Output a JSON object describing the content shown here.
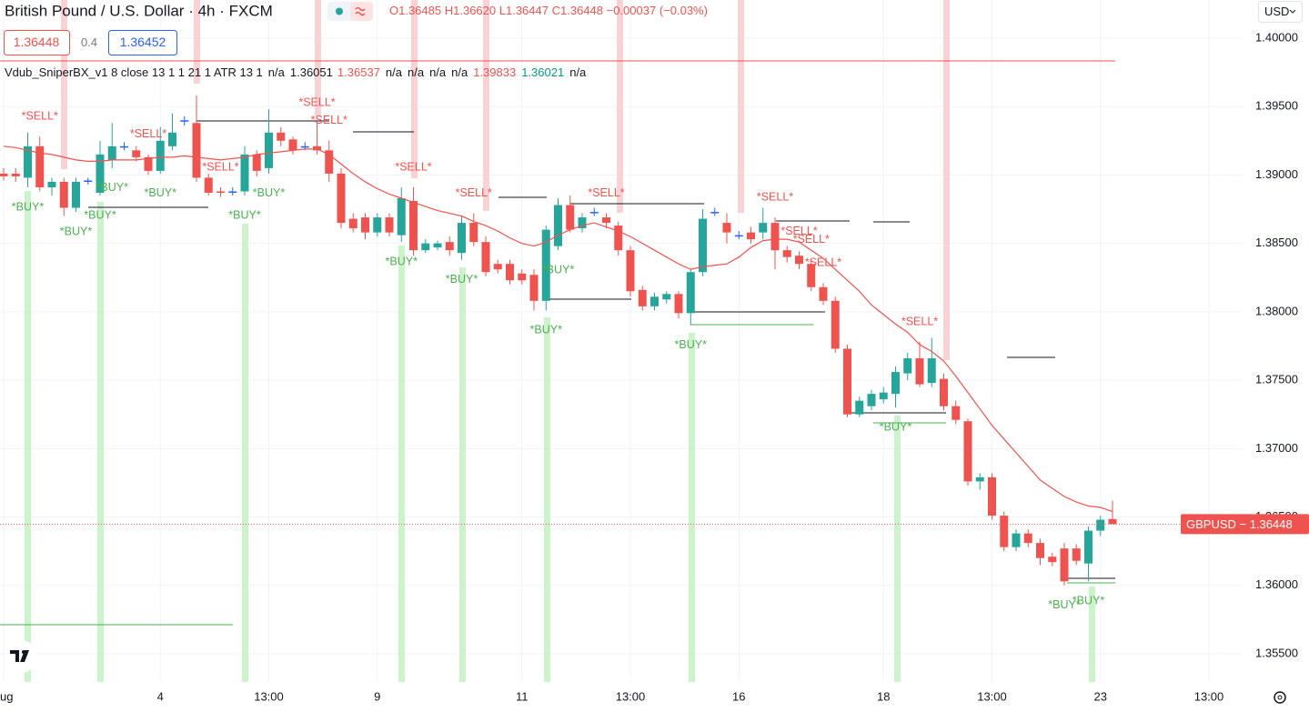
{
  "header": {
    "title": "British Pound / U.S. Dollar · 4h · FXCM",
    "ohlc": [
      "O1.36485",
      "H1.36620",
      "L1.36447",
      "C1.36448",
      "−0.00037 (−0.03%)"
    ],
    "bid": "1.36448",
    "spread": "0.4",
    "ask": "1.36452",
    "currency": "USD",
    "indicator_name": "Vdub_SniperBX_v1 8 close 13 1 1 21 1 ATR 13 1",
    "indicator_values": [
      {
        "text": "n/a",
        "color": "#131722"
      },
      {
        "text": "1.36051",
        "color": "#131722"
      },
      {
        "text": "1.36537",
        "color": "#ef5350"
      },
      {
        "text": "n/a",
        "color": "#131722"
      },
      {
        "text": "n/a",
        "color": "#131722"
      },
      {
        "text": "n/a",
        "color": "#131722"
      },
      {
        "text": "n/a",
        "color": "#131722"
      },
      {
        "text": "1.39833",
        "color": "#ef5350"
      },
      {
        "text": "1.36021",
        "color": "#089981"
      },
      {
        "text": "n/a",
        "color": "#131722"
      }
    ]
  },
  "chart_data": {
    "type": "candlestick",
    "categories": [
      "ug",
      null,
      null,
      null,
      null,
      null,
      null,
      null,
      null,
      null,
      null,
      null,
      null,
      "4",
      null,
      null,
      null,
      null,
      null,
      null,
      null,
      null,
      "13:00",
      null,
      null,
      null,
      null,
      null,
      null,
      null,
      null,
      "9",
      null,
      null,
      null,
      null,
      null,
      null,
      null,
      null,
      null,
      null,
      null,
      "11",
      null,
      null,
      null,
      null,
      null,
      null,
      null,
      null,
      "13:00",
      null,
      null,
      null,
      null,
      null,
      null,
      null,
      null,
      "16",
      null,
      null,
      null,
      null,
      null,
      null,
      null,
      null,
      null,
      null,
      null,
      "18",
      null,
      null,
      null,
      null,
      null,
      null,
      null,
      null,
      "13:00",
      null,
      null,
      null,
      null,
      null,
      null,
      null,
      null,
      "23",
      null,
      null,
      null,
      null,
      null,
      null,
      null,
      null,
      "13:00"
    ],
    "open": [
      1.3901,
      1.3901,
      1.3898,
      1.3921,
      1.3891,
      1.3895,
      1.3876,
      1.3896,
      1.3887,
      1.3911,
      1.3921,
      1.3918,
      1.3913,
      1.3903,
      1.3921,
      1.394,
      1.3938,
      1.3898,
      1.3888,
      1.3888,
      1.3888,
      1.3915,
      1.3905,
      1.3931,
      1.3926,
      1.3921,
      1.3921,
      1.3918,
      1.3901,
      1.3868,
      1.3869,
      1.3858,
      1.3869,
      1.3856,
      1.3881,
      1.3845,
      1.3847,
      1.3851,
      1.3843,
      1.3865,
      1.3851,
      1.3835,
      1.3835,
      1.3828,
      1.3827,
      1.3808,
      1.3848,
      1.3878,
      1.3861,
      1.3873,
      1.3869,
      1.3863,
      1.3845,
      1.3816,
      1.3804,
      1.3809,
      1.3813,
      1.3799,
      1.3829,
      1.3873,
      1.3865,
      1.3856,
      1.3858,
      1.3858,
      1.3865,
      1.3845,
      1.3841,
      1.3835,
      1.3818,
      1.3808,
      1.3773,
      1.3725,
      1.3731,
      1.3736,
      1.374,
      1.3755,
      1.3766,
      1.3748,
      1.3751,
      1.3731,
      1.372,
      1.3676,
      1.3679,
      1.3651,
      1.3628,
      1.3638,
      1.3631,
      1.3621,
      1.3627,
      1.3627,
      1.3616,
      1.364,
      1.36485,
      null,
      null,
      null,
      null,
      null,
      null,
      null,
      null
    ],
    "high": [
      1.3905,
      1.3905,
      1.3931,
      1.3928,
      1.3898,
      1.3898,
      1.3898,
      1.3898,
      1.3925,
      1.3938,
      1.3924,
      1.3921,
      1.3915,
      1.3935,
      1.3945,
      1.3943,
      1.3958,
      1.3901,
      1.3891,
      1.3891,
      1.3921,
      1.3918,
      1.3948,
      1.3935,
      1.3928,
      1.3924,
      1.3938,
      1.3925,
      1.3905,
      1.3872,
      1.3872,
      1.3872,
      1.3872,
      1.3891,
      1.3891,
      1.3853,
      1.3852,
      1.3855,
      1.387,
      1.3872,
      1.3855,
      1.3838,
      1.3838,
      1.3831,
      1.3831,
      1.3863,
      1.3883,
      1.3885,
      1.3872,
      1.3876,
      1.3872,
      1.3866,
      1.3848,
      1.3819,
      1.3814,
      1.3815,
      1.3815,
      1.3831,
      1.3875,
      1.3876,
      1.3872,
      1.3859,
      1.3862,
      1.3876,
      1.3869,
      1.3848,
      1.3844,
      1.3838,
      1.3821,
      1.3811,
      1.3776,
      1.3738,
      1.3743,
      1.3745,
      1.376,
      1.377,
      1.3778,
      1.3781,
      1.3755,
      1.3735,
      1.3722,
      1.3682,
      1.3682,
      1.3654,
      1.3641,
      1.3641,
      1.3634,
      1.3624,
      1.3631,
      1.363,
      1.3643,
      1.3651,
      1.3662,
      null,
      null,
      null,
      null,
      null,
      null,
      null,
      null
    ],
    "low": [
      1.3896,
      1.3895,
      1.3891,
      1.3888,
      1.3885,
      1.387,
      1.3873,
      1.3893,
      1.3885,
      1.3905,
      1.3918,
      1.391,
      1.39,
      1.3901,
      1.3918,
      1.3936,
      1.3895,
      1.3885,
      1.3884,
      1.3885,
      1.3885,
      1.3899,
      1.3901,
      1.3921,
      1.3915,
      1.3918,
      1.3915,
      1.3895,
      1.3861,
      1.3858,
      1.3853,
      1.3855,
      1.3855,
      1.3851,
      1.3841,
      1.3843,
      1.3845,
      1.3841,
      1.3838,
      1.3848,
      1.3826,
      1.3828,
      1.382,
      1.382,
      1.3801,
      1.3801,
      1.3845,
      1.3858,
      1.3858,
      1.387,
      1.3861,
      1.3841,
      1.3811,
      1.3801,
      1.3801,
      1.3806,
      1.3795,
      1.379,
      1.3826,
      1.387,
      1.385,
      1.3853,
      1.385,
      1.3853,
      1.3831,
      1.3836,
      1.3831,
      1.3815,
      1.3805,
      1.377,
      1.3723,
      1.3723,
      1.3728,
      1.3733,
      1.373,
      1.375,
      1.3745,
      1.3745,
      1.3728,
      1.3718,
      1.3673,
      1.367,
      1.3648,
      1.3625,
      1.3625,
      1.3628,
      1.3615,
      1.3614,
      1.36,
      1.3615,
      1.3603,
      1.3636,
      1.36447,
      null,
      null,
      null,
      null,
      null,
      null,
      null,
      null
    ],
    "close": [
      1.3899,
      1.3899,
      1.3921,
      1.3891,
      1.3895,
      1.3876,
      1.3895,
      1.3896,
      1.3915,
      1.3921,
      1.3921,
      1.3913,
      1.3903,
      1.3925,
      1.3931,
      1.394,
      1.3898,
      1.3887,
      1.3887,
      1.3888,
      1.3915,
      1.3903,
      1.3931,
      1.3925,
      1.3918,
      1.3921,
      1.3918,
      1.3901,
      1.3865,
      1.3861,
      1.3858,
      1.3869,
      1.3858,
      1.3883,
      1.3845,
      1.385,
      1.385,
      1.3845,
      1.3865,
      1.3851,
      1.3829,
      1.3831,
      1.3823,
      1.3823,
      1.3808,
      1.386,
      1.3878,
      1.386,
      1.3869,
      1.3873,
      1.3865,
      1.3845,
      1.3815,
      1.3804,
      1.3811,
      1.3813,
      1.3799,
      1.3829,
      1.3868,
      1.3873,
      1.3858,
      1.3856,
      1.3853,
      1.3865,
      1.3845,
      1.384,
      1.3835,
      1.3818,
      1.3808,
      1.3773,
      1.3725,
      1.3735,
      1.374,
      1.3741,
      1.3756,
      1.3766,
      1.3747,
      1.3766,
      1.3731,
      1.3721,
      1.3676,
      1.3679,
      1.3651,
      1.3628,
      1.3638,
      1.3631,
      1.362,
      1.3617,
      1.3603,
      1.3618,
      1.364,
      1.3648,
      1.36448,
      null,
      null,
      null,
      null,
      null,
      null,
      null,
      null
    ],
    "ma": [
      1.3921,
      1.392,
      1.3918,
      1.3916,
      1.3915,
      1.3913,
      1.3911,
      1.391,
      1.391,
      1.3911,
      1.3911,
      1.3911,
      1.3912,
      1.3913,
      1.3913,
      1.3914,
      1.3913,
      1.3912,
      1.3911,
      1.3912,
      1.3913,
      1.3915,
      1.3916,
      1.3917,
      1.3918,
      1.3919,
      1.3919,
      1.3915,
      1.3908,
      1.3901,
      1.3895,
      1.389,
      1.3886,
      1.3883,
      1.388,
      1.3877,
      1.3874,
      1.3872,
      1.387,
      1.3866,
      1.3863,
      1.3859,
      1.3854,
      1.385,
      1.3848,
      1.3851,
      1.3856,
      1.386,
      1.3863,
      1.3865,
      1.3862,
      1.3859,
      1.3855,
      1.385,
      1.3845,
      1.384,
      1.3835,
      1.3831,
      1.3833,
      1.3834,
      1.3835,
      1.384,
      1.3847,
      1.3852,
      1.3853,
      1.3853,
      1.3851,
      1.3845,
      1.3839,
      1.3831,
      1.3823,
      1.3815,
      1.3805,
      1.3798,
      1.3791,
      1.3785,
      1.3776,
      1.3771,
      1.3764,
      1.3753,
      1.3741,
      1.3729,
      1.3717,
      1.3707,
      1.3697,
      1.3687,
      1.3677,
      1.3671,
      1.3665,
      1.3661,
      1.3658,
      1.3657,
      1.3654,
      null,
      null,
      null,
      null,
      null,
      null,
      null,
      null
    ],
    "ma_color": "#ef5350",
    "signals": [
      null,
      null,
      "*BUY*",
      "*SELL*",
      null,
      null,
      "*BUY*",
      null,
      "*BUY*",
      "*BUY*",
      null,
      null,
      "*SELL*",
      "*BUY*",
      null,
      null,
      null,
      null,
      "*SELL*",
      null,
      "*BUY*",
      null,
      "*BUY*",
      null,
      null,
      null,
      "*SELL*",
      "*SELL*",
      null,
      null,
      null,
      null,
      null,
      "*BUY*",
      "*SELL*",
      null,
      null,
      null,
      "*BUY*",
      "*SELL*",
      null,
      null,
      null,
      null,
      null,
      "*BUY*",
      "*BUY*",
      null,
      null,
      null,
      "*SELL*",
      null,
      null,
      null,
      null,
      null,
      null,
      "*BUY*",
      null,
      null,
      null,
      null,
      null,
      null,
      "*SELL*",
      null,
      "*SELL*",
      "*SELL*",
      "*SELL*",
      null,
      null,
      null,
      null,
      null,
      "*BUY*",
      null,
      "*SELL*",
      null,
      null,
      null,
      null,
      null,
      null,
      null,
      null,
      null,
      null,
      null,
      "*BUY*",
      null,
      "*BUY*",
      null,
      null,
      null,
      null,
      null,
      null,
      null,
      null,
      null,
      null
    ],
    "up_color": "#26a69a",
    "down_color": "#ef5350",
    "flat_color": "#2962ff",
    "ylim": [
      1.35294,
      1.40279
    ],
    "yticks": [
      {
        "value": 1.4,
        "label": "1.40000"
      },
      {
        "value": 1.395,
        "label": "1.39500"
      },
      {
        "value": 1.39,
        "label": "1.39000"
      },
      {
        "value": 1.385,
        "label": "1.38500"
      },
      {
        "value": 1.38,
        "label": "1.38000"
      },
      {
        "value": 1.375,
        "label": "1.37500"
      },
      {
        "value": 1.37,
        "label": "1.37000"
      },
      {
        "value": 1.365,
        "label": "1.36500"
      },
      {
        "value": 1.36,
        "label": "1.36000"
      },
      {
        "value": 1.355,
        "label": "1.35500"
      }
    ],
    "grid": true,
    "last_price": 1.36448,
    "last_price_label": "GBPUSD − 1.36448"
  }
}
